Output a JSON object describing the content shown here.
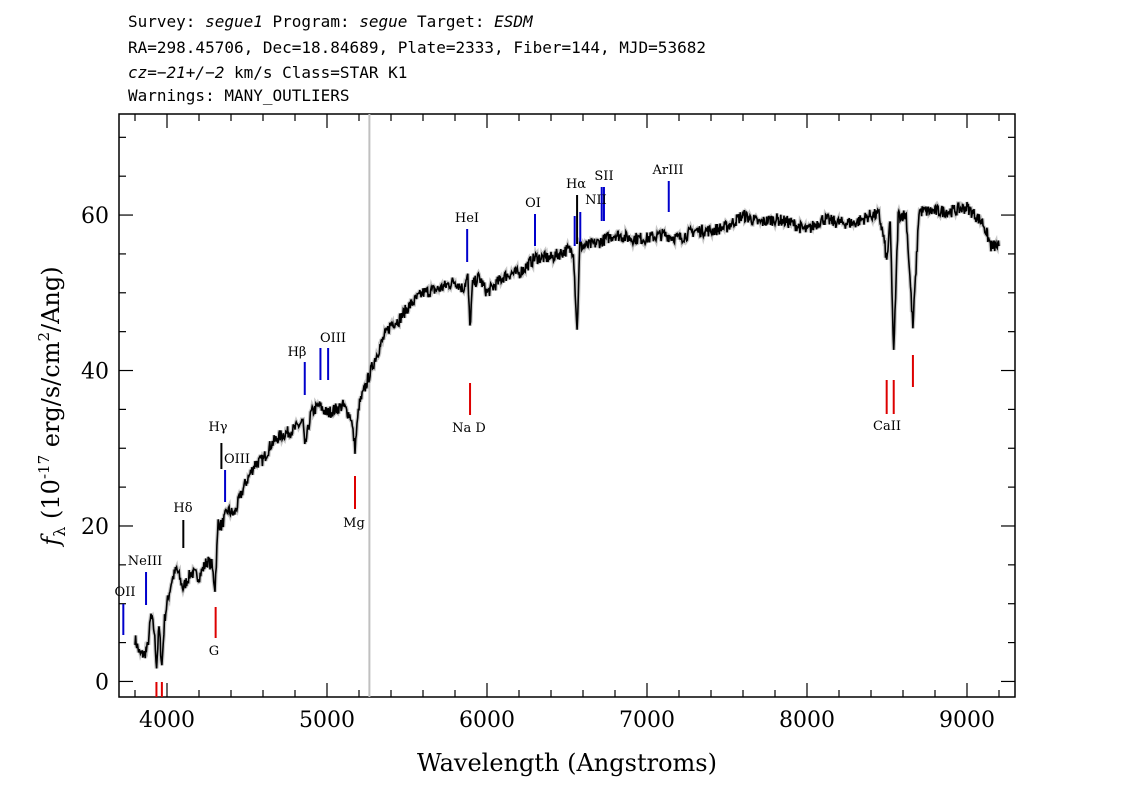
{
  "header": {
    "survey_label": "Survey:",
    "survey": "segue1",
    "program_label": "Program:",
    "program": "segue",
    "target_label": "Target:",
    "target": "ESDM",
    "line2": "RA=298.45706, Dec=18.84689, Plate=2333, Fiber=144, MJD=53682",
    "cz": "cz=−21+/−2",
    "cz_unit": "km/s Class=STAR K1",
    "warnings": "Warnings: MANY_OUTLIERS"
  },
  "chart_data": {
    "type": "line",
    "xlabel": "Wavelength (Angstroms)",
    "ylabel": "f_λ (10^-17 erg/s/cm^2/Ang)",
    "xlim": [
      3700,
      9300
    ],
    "ylim": [
      -2,
      73
    ],
    "x_ticks": [
      4000,
      5000,
      6000,
      7000,
      8000,
      9000
    ],
    "y_ticks": [
      0,
      20,
      40,
      60
    ],
    "vertical_marker_x": 5265,
    "colors": {
      "spectrum": "#000000",
      "error": "#b0b0b0",
      "emission": "#0000cc",
      "absorption": "#dd0000",
      "marker": "#c0c0c0"
    },
    "spectrum": {
      "x": [
        3800,
        3830,
        3860,
        3880,
        3900,
        3920,
        3935,
        3950,
        3968,
        3985,
        4000,
        4030,
        4060,
        4100,
        4150,
        4200,
        4250,
        4280,
        4300,
        4320,
        4340,
        4380,
        4420,
        4480,
        4550,
        4600,
        4650,
        4700,
        4750,
        4800,
        4850,
        4861,
        4900,
        4950,
        5000,
        5050,
        5100,
        5150,
        5175,
        5200,
        5250,
        5300,
        5350,
        5400,
        5450,
        5500,
        5600,
        5700,
        5800,
        5850,
        5880,
        5893,
        5910,
        5950,
        6000,
        6050,
        6100,
        6150,
        6200,
        6250,
        6300,
        6350,
        6400,
        6450,
        6500,
        6540,
        6563,
        6580,
        6620,
        6700,
        6800,
        6900,
        7000,
        7100,
        7200,
        7300,
        7400,
        7500,
        7600,
        7700,
        7800,
        7900,
        8000,
        8100,
        8200,
        8300,
        8400,
        8450,
        8480,
        8498,
        8520,
        8542,
        8570,
        8620,
        8662,
        8700,
        8800,
        8900,
        9000,
        9100,
        9150,
        9200
      ],
      "y": [
        5.5,
        3.5,
        3.5,
        4.5,
        8.5,
        6.5,
        2.0,
        7.0,
        2.0,
        8.0,
        10.0,
        13.0,
        14.5,
        12.0,
        14.0,
        13.5,
        15.5,
        15.0,
        12.0,
        20.5,
        20.0,
        22.0,
        21.5,
        25.0,
        28.0,
        28.5,
        30.5,
        31.5,
        32.0,
        32.5,
        33.5,
        30.0,
        34.5,
        35.5,
        34.5,
        35.0,
        35.5,
        34.0,
        30.0,
        35.5,
        38.5,
        41.5,
        44.0,
        46.0,
        46.5,
        48.0,
        50.0,
        50.5,
        51.5,
        50.5,
        52.0,
        45.5,
        51.0,
        52.0,
        50.0,
        51.0,
        52.0,
        52.5,
        52.5,
        53.5,
        54.5,
        54.5,
        54.5,
        55.0,
        55.5,
        55.5,
        45.0,
        56.0,
        56.0,
        56.5,
        57.5,
        57.0,
        57.0,
        57.5,
        57.0,
        58.0,
        58.0,
        58.5,
        60.0,
        59.0,
        59.5,
        59.0,
        58.0,
        59.5,
        59.0,
        59.0,
        60.0,
        60.0,
        57.0,
        54.0,
        59.0,
        42.0,
        60.0,
        60.0,
        45.5,
        60.5,
        60.5,
        60.5,
        61.0,
        59.0,
        56.0,
        56.0
      ]
    },
    "emission_lines": [
      {
        "label": "OII",
        "wave": 3727
      },
      {
        "label": "NeIII",
        "wave": 3869
      },
      {
        "label": "Hδ",
        "wave": 4102
      },
      {
        "label": "Hγ",
        "wave": 4340
      },
      {
        "label": "OIII",
        "wave": 4363
      },
      {
        "label": "Hβ",
        "wave": 4861
      },
      {
        "label": "OIII",
        "wave": 4959
      },
      {
        "label": "OIII",
        "wave": 5007
      },
      {
        "label": "HeI",
        "wave": 5876
      },
      {
        "label": "OI",
        "wave": 6300
      },
      {
        "label": "NII",
        "wave": 6548
      },
      {
        "label": "Hα",
        "wave": 6563
      },
      {
        "label": "NII",
        "wave": 6583
      },
      {
        "label": "SII",
        "wave": 6717
      },
      {
        "label": "SII",
        "wave": 6731
      },
      {
        "label": "ArIII",
        "wave": 7136
      }
    ],
    "absorption_lines": [
      {
        "label": "",
        "wave": 3934
      },
      {
        "label": "",
        "wave": 3968
      },
      {
        "label": "G",
        "wave": 4304
      },
      {
        "label": "Mg",
        "wave": 5175
      },
      {
        "label": "Na D",
        "wave": 5894
      },
      {
        "label": "CaII",
        "wave": 8498
      },
      {
        "label": "",
        "wave": 8542
      },
      {
        "label": "",
        "wave": 8662
      }
    ]
  }
}
